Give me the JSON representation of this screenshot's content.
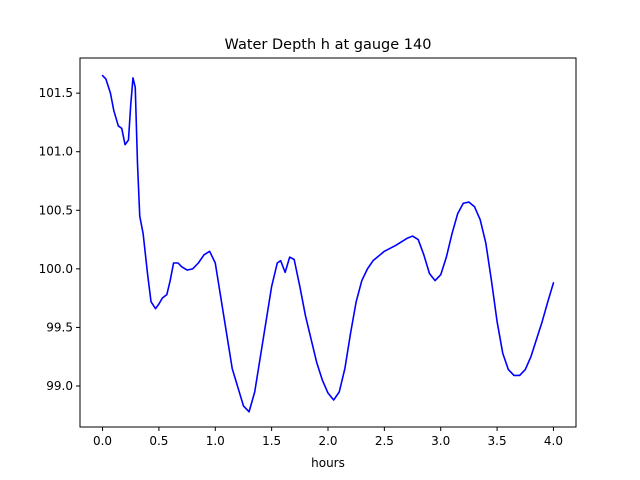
{
  "chart_data": {
    "type": "line",
    "title": "Water Depth h at gauge 140",
    "xlabel": "hours",
    "ylabel": "",
    "xlim": [
      -0.2,
      4.2
    ],
    "ylim": [
      98.65,
      101.8
    ],
    "xticks": [
      0.0,
      0.5,
      1.0,
      1.5,
      2.0,
      2.5,
      3.0,
      3.5,
      4.0
    ],
    "xtick_labels": [
      "0.0",
      "0.5",
      "1.0",
      "1.5",
      "2.0",
      "2.5",
      "3.0",
      "3.5",
      "4.0"
    ],
    "yticks": [
      99.0,
      99.5,
      100.0,
      100.5,
      101.0,
      101.5
    ],
    "ytick_labels": [
      "99.0",
      "99.5",
      "100.0",
      "100.5",
      "101.0",
      "101.5"
    ],
    "grid": false,
    "series": [
      {
        "color": "#0000ff",
        "points": [
          [
            0.0,
            101.65
          ],
          [
            0.03,
            101.62
          ],
          [
            0.07,
            101.5
          ],
          [
            0.1,
            101.35
          ],
          [
            0.14,
            101.22
          ],
          [
            0.17,
            101.2
          ],
          [
            0.2,
            101.06
          ],
          [
            0.23,
            101.1
          ],
          [
            0.25,
            101.4
          ],
          [
            0.27,
            101.63
          ],
          [
            0.29,
            101.55
          ],
          [
            0.31,
            100.9
          ],
          [
            0.33,
            100.45
          ],
          [
            0.36,
            100.3
          ],
          [
            0.4,
            99.95
          ],
          [
            0.43,
            99.72
          ],
          [
            0.47,
            99.66
          ],
          [
            0.5,
            99.7
          ],
          [
            0.53,
            99.75
          ],
          [
            0.57,
            99.78
          ],
          [
            0.6,
            99.9
          ],
          [
            0.63,
            100.05
          ],
          [
            0.67,
            100.05
          ],
          [
            0.7,
            100.02
          ],
          [
            0.75,
            99.99
          ],
          [
            0.8,
            100.0
          ],
          [
            0.85,
            100.05
          ],
          [
            0.9,
            100.12
          ],
          [
            0.95,
            100.15
          ],
          [
            1.0,
            100.05
          ],
          [
            1.05,
            99.75
          ],
          [
            1.1,
            99.45
          ],
          [
            1.15,
            99.15
          ],
          [
            1.2,
            98.99
          ],
          [
            1.25,
            98.83
          ],
          [
            1.3,
            98.78
          ],
          [
            1.35,
            98.95
          ],
          [
            1.4,
            99.25
          ],
          [
            1.45,
            99.55
          ],
          [
            1.5,
            99.85
          ],
          [
            1.55,
            100.05
          ],
          [
            1.58,
            100.07
          ],
          [
            1.62,
            99.97
          ],
          [
            1.66,
            100.1
          ],
          [
            1.7,
            100.08
          ],
          [
            1.75,
            99.85
          ],
          [
            1.8,
            99.6
          ],
          [
            1.85,
            99.4
          ],
          [
            1.9,
            99.2
          ],
          [
            1.95,
            99.05
          ],
          [
            2.0,
            98.94
          ],
          [
            2.05,
            98.88
          ],
          [
            2.1,
            98.95
          ],
          [
            2.15,
            99.15
          ],
          [
            2.2,
            99.45
          ],
          [
            2.25,
            99.72
          ],
          [
            2.3,
            99.9
          ],
          [
            2.35,
            100.0
          ],
          [
            2.4,
            100.07
          ],
          [
            2.5,
            100.15
          ],
          [
            2.6,
            100.2
          ],
          [
            2.7,
            100.26
          ],
          [
            2.75,
            100.28
          ],
          [
            2.8,
            100.25
          ],
          [
            2.85,
            100.12
          ],
          [
            2.9,
            99.96
          ],
          [
            2.95,
            99.9
          ],
          [
            3.0,
            99.95
          ],
          [
            3.05,
            100.1
          ],
          [
            3.1,
            100.3
          ],
          [
            3.15,
            100.47
          ],
          [
            3.2,
            100.56
          ],
          [
            3.25,
            100.57
          ],
          [
            3.3,
            100.53
          ],
          [
            3.35,
            100.42
          ],
          [
            3.4,
            100.22
          ],
          [
            3.45,
            99.9
          ],
          [
            3.5,
            99.55
          ],
          [
            3.55,
            99.28
          ],
          [
            3.6,
            99.14
          ],
          [
            3.65,
            99.09
          ],
          [
            3.7,
            99.09
          ],
          [
            3.75,
            99.14
          ],
          [
            3.8,
            99.25
          ],
          [
            3.85,
            99.4
          ],
          [
            3.9,
            99.55
          ],
          [
            3.95,
            99.72
          ],
          [
            4.0,
            99.88
          ]
        ]
      }
    ]
  }
}
